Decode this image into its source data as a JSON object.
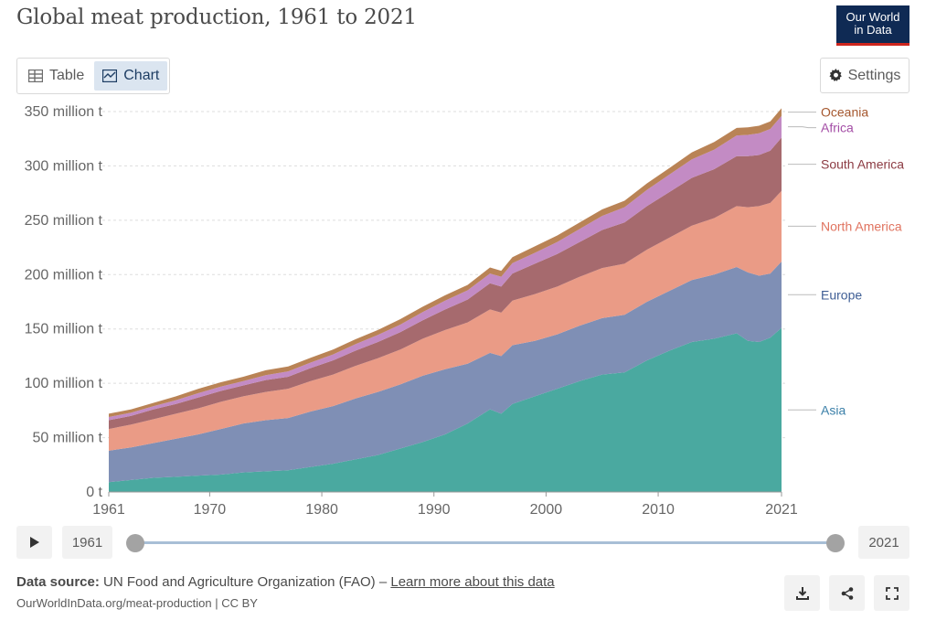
{
  "title": "Global meat production, 1961 to 2021",
  "logo": {
    "line1": "Our World",
    "line2": "in Data"
  },
  "tabs": [
    {
      "label": "Table",
      "icon": "table-icon",
      "active": false
    },
    {
      "label": "Chart",
      "icon": "line-chart-icon",
      "active": true
    }
  ],
  "settings_label": "Settings",
  "timeline": {
    "start_year": "1961",
    "end_year": "2021",
    "start_fraction": 0,
    "end_fraction": 1
  },
  "footer": {
    "source_label": "Data source:",
    "source_text": "UN Food and Agriculture Organization (FAO) – ",
    "learn_more": "Learn more about this data",
    "url": "OurWorldInData.org/meat-production | CC BY"
  },
  "colors": {
    "Asia": "#4aa9a0",
    "Europe": "#7f8fb5",
    "North America": "#ea9b86",
    "South America": "#a66a6e",
    "Africa": "#c38bc4",
    "Oceania": "#b98356",
    "label_Asia": "#3a7fa8",
    "label_Europe": "#3f5e95",
    "label_North America": "#e0735f",
    "label_South America": "#8c3b43",
    "label_Africa": "#a44ea6",
    "label_Oceania": "#a5572e"
  },
  "chart_data": {
    "type": "area",
    "stacked": true,
    "ylim": [
      0,
      350
    ],
    "xlim": [
      1961,
      2021
    ],
    "y_ticks": [
      0,
      50,
      100,
      150,
      200,
      250,
      300,
      350
    ],
    "y_tick_labels": [
      "0 t",
      "50 million t",
      "100 million t",
      "150 million t",
      "200 million t",
      "250 million t",
      "300 million t",
      "350 million t"
    ],
    "x_ticks": [
      1961,
      1970,
      1980,
      1990,
      2000,
      2010,
      2021
    ],
    "x_tick_labels": [
      "1961",
      "1970",
      "1980",
      "1990",
      "2000",
      "2010",
      "2021"
    ],
    "unit": "million t",
    "x": [
      1961,
      1963,
      1965,
      1967,
      1969,
      1971,
      1973,
      1975,
      1977,
      1979,
      1981,
      1983,
      1985,
      1987,
      1989,
      1991,
      1993,
      1995,
      1996,
      1997,
      1999,
      2001,
      2003,
      2005,
      2007,
      2009,
      2011,
      2013,
      2015,
      2017,
      2018,
      2019,
      2020,
      2021
    ],
    "series": [
      {
        "name": "Asia",
        "values": [
          9,
          11,
          13,
          14,
          15,
          16,
          18,
          19,
          20,
          23,
          26,
          30,
          34,
          40,
          46,
          53,
          63,
          76,
          72,
          81,
          88,
          95,
          102,
          108,
          110,
          121,
          130,
          138,
          141,
          146,
          139,
          138,
          142,
          151
        ]
      },
      {
        "name": "Europe",
        "values": [
          29,
          30,
          32,
          35,
          38,
          42,
          45,
          47,
          48,
          51,
          53,
          56,
          58,
          59,
          61,
          60,
          55,
          52,
          53,
          54,
          51,
          50,
          51,
          52,
          53,
          54,
          55,
          57,
          59,
          61,
          63,
          61,
          59,
          61
        ]
      },
      {
        "name": "North America",
        "values": [
          20,
          21,
          22,
          23,
          24,
          25,
          25,
          26,
          27,
          28,
          29,
          30,
          31,
          32,
          34,
          36,
          38,
          40,
          40,
          41,
          43,
          44,
          45,
          46,
          47,
          48,
          49,
          50,
          52,
          56,
          60,
          64,
          65,
          65
        ]
      },
      {
        "name": "South America",
        "values": [
          8,
          8,
          9,
          9,
          10,
          10,
          10,
          11,
          11,
          12,
          13,
          14,
          15,
          16,
          17,
          19,
          21,
          24,
          24,
          25,
          28,
          30,
          32,
          35,
          38,
          40,
          42,
          44,
          45,
          46,
          47,
          47,
          48,
          49
        ]
      },
      {
        "name": "Africa",
        "values": [
          3,
          3,
          3,
          3.5,
          4,
          4,
          4,
          4.5,
          5,
          5,
          5.5,
          6,
          6.5,
          7,
          7.5,
          8,
          8.5,
          9,
          9,
          9.5,
          10,
          11,
          12,
          13,
          14,
          15,
          16,
          17,
          18,
          19,
          19.5,
          20,
          20,
          20
        ]
      },
      {
        "name": "Oceania",
        "values": [
          3,
          3,
          3,
          3.5,
          4,
          4,
          4,
          4.5,
          4.5,
          4.5,
          4.5,
          4.5,
          4.5,
          5,
          5,
          5,
          5,
          5.5,
          5.5,
          5.5,
          6,
          6,
          6,
          6,
          6,
          6,
          6,
          6.5,
          7,
          7,
          7,
          7,
          7,
          7
        ]
      }
    ],
    "legend_position": "right, inline labels",
    "grid": "horizontal dashed"
  }
}
